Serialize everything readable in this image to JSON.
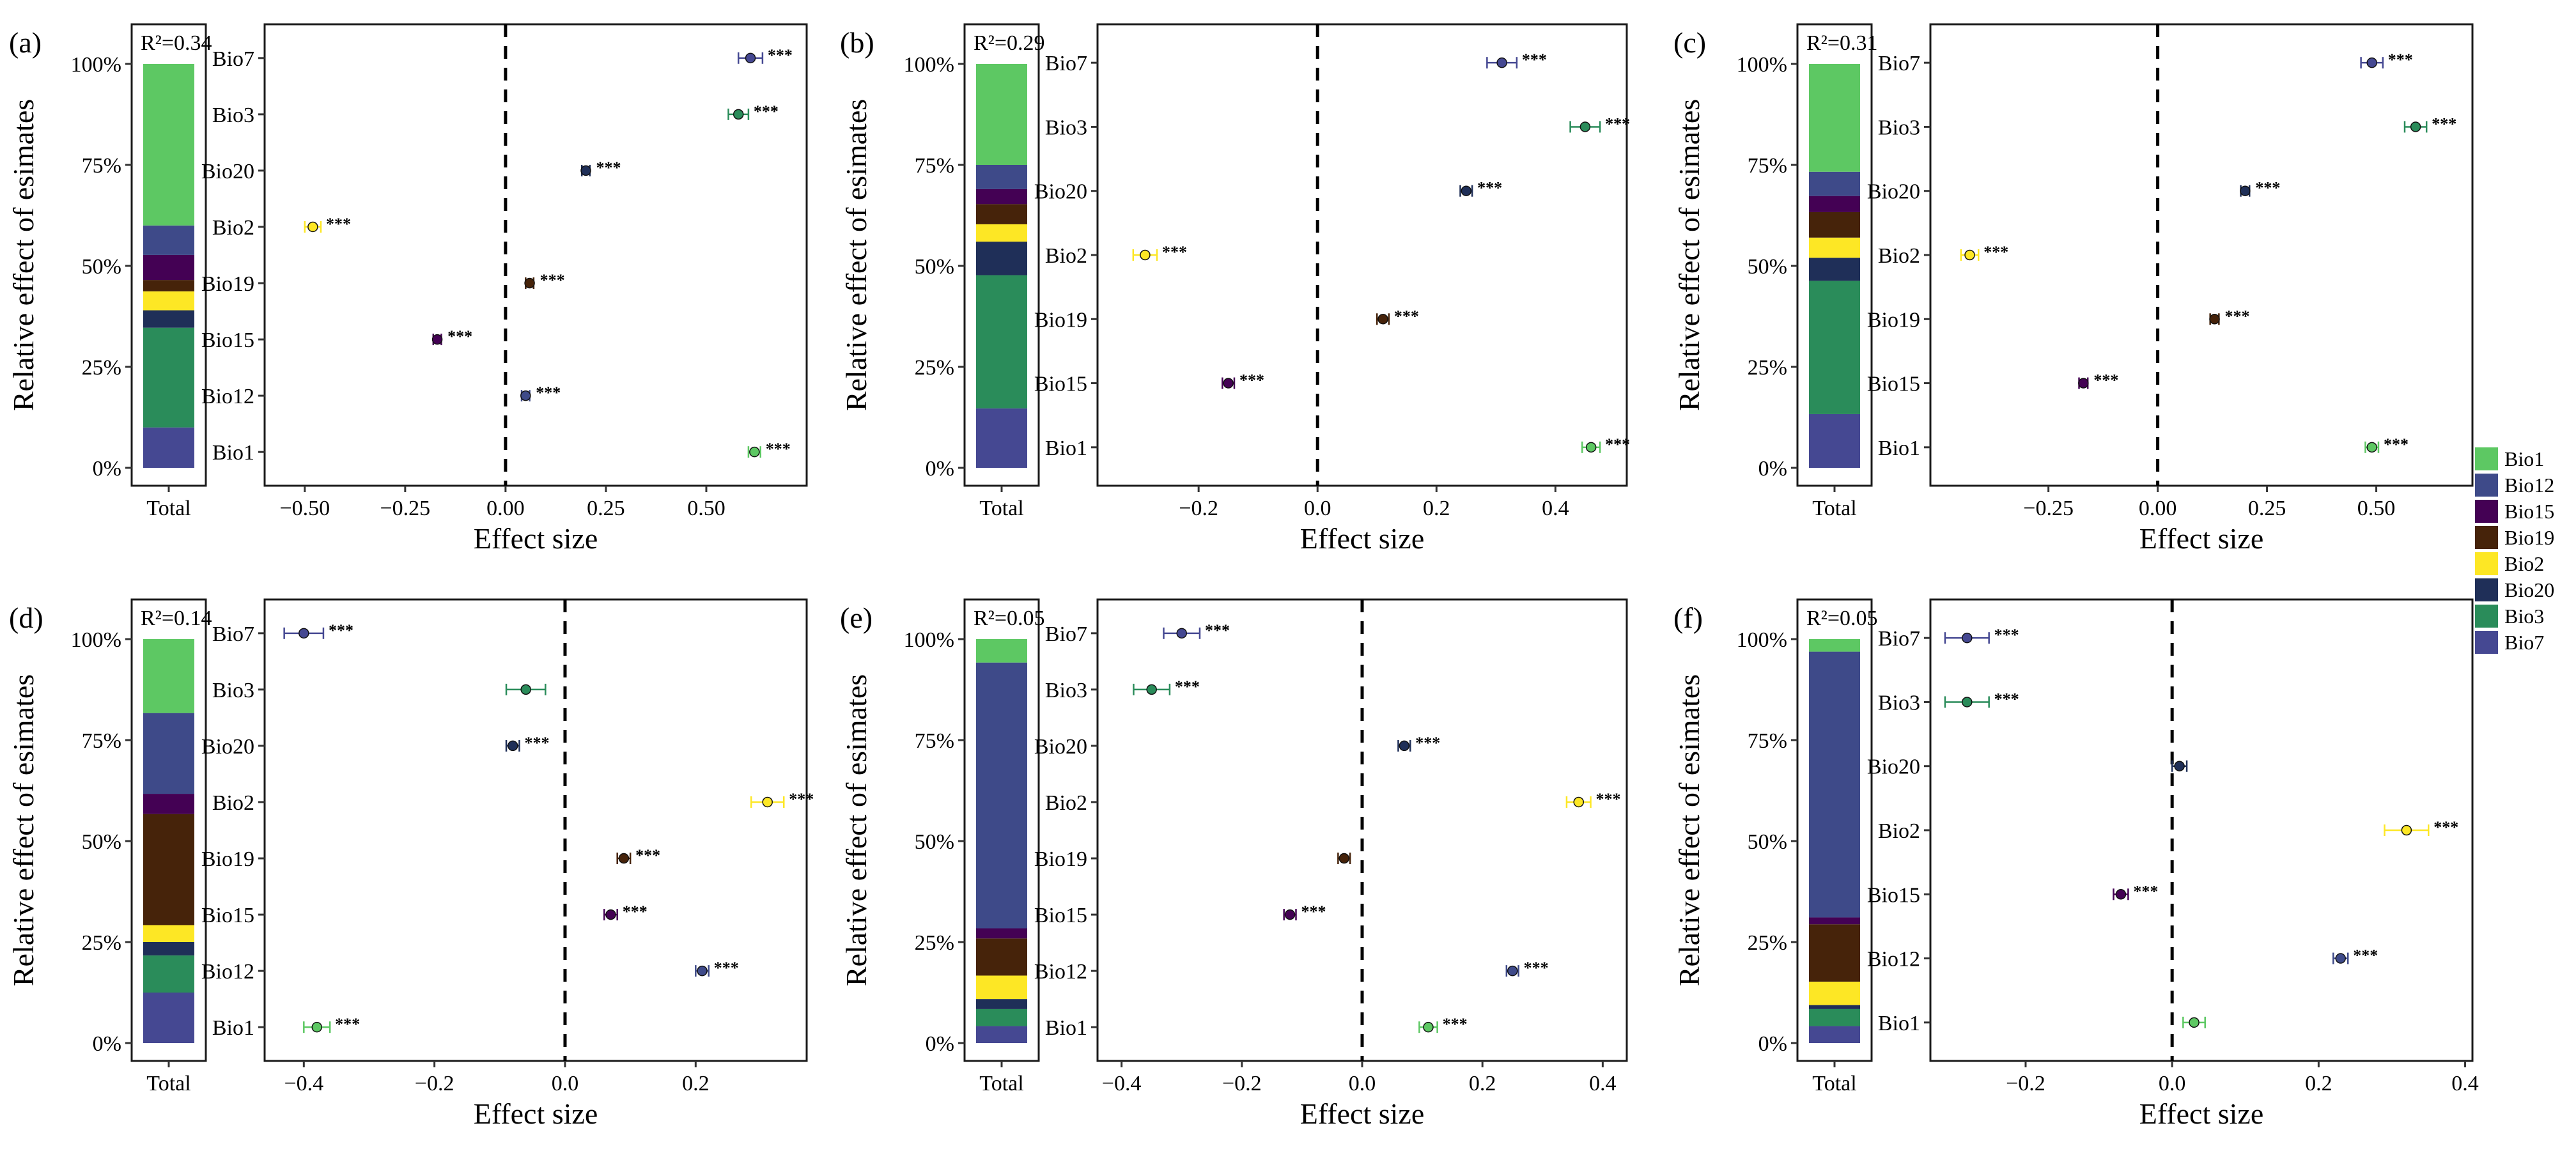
{
  "legend": {
    "title": "",
    "items": [
      {
        "name": "Bio1",
        "color": "#5dc863"
      },
      {
        "name": "Bio12",
        "color": "#3e4a89"
      },
      {
        "name": "Bio15",
        "color": "#440154"
      },
      {
        "name": "Bio19",
        "color": "#46230a"
      },
      {
        "name": "Bio2",
        "color": "#fde725"
      },
      {
        "name": "Bio20",
        "color": "#1f2f58"
      },
      {
        "name": "Bio3",
        "color": "#2a8c5a"
      },
      {
        "name": "Bio7",
        "color": "#454892"
      }
    ]
  },
  "chart_data": [
    {
      "panel": "(a)",
      "type": "scatter",
      "r2_label": "R²=0.34",
      "stack": {
        "xlabel": "Total",
        "ylabel": "Relative effect of esimates",
        "yticks": [
          "0%",
          "25%",
          "50%",
          "75%",
          "100%"
        ],
        "segments": [
          {
            "name": "Bio7",
            "value": 10.0
          },
          {
            "name": "Bio3",
            "value": 24.7
          },
          {
            "name": "Bio20",
            "value": 4.3
          },
          {
            "name": "Bio2",
            "value": 4.7
          },
          {
            "name": "Bio19",
            "value": 2.8
          },
          {
            "name": "Bio15",
            "value": 6.2
          },
          {
            "name": "Bio12",
            "value": 7.3
          },
          {
            "name": "Bio1",
            "value": 40.0
          }
        ]
      },
      "forest": {
        "xlabel": "Effect size",
        "xlim": [
          -0.6,
          0.75
        ],
        "xticks": [
          -0.5,
          -0.25,
          0.0,
          0.25,
          0.5
        ],
        "xtick_labels": [
          "−0.50",
          "−0.25",
          "0.00",
          "0.25",
          "0.50"
        ],
        "points": [
          {
            "name": "Bio7",
            "estimate": 0.61,
            "lower": 0.58,
            "upper": 0.64,
            "sig": "***"
          },
          {
            "name": "Bio3",
            "estimate": 0.58,
            "lower": 0.555,
            "upper": 0.605,
            "sig": "***"
          },
          {
            "name": "Bio20",
            "estimate": 0.2,
            "lower": 0.19,
            "upper": 0.21,
            "sig": "***"
          },
          {
            "name": "Bio2",
            "estimate": -0.48,
            "lower": -0.5,
            "upper": -0.46,
            "sig": "***"
          },
          {
            "name": "Bio19",
            "estimate": 0.06,
            "lower": 0.05,
            "upper": 0.07,
            "sig": "***"
          },
          {
            "name": "Bio15",
            "estimate": -0.17,
            "lower": -0.18,
            "upper": -0.16,
            "sig": "***"
          },
          {
            "name": "Bio12",
            "estimate": 0.05,
            "lower": 0.04,
            "upper": 0.06,
            "sig": "***"
          },
          {
            "name": "Bio1",
            "estimate": 0.62,
            "lower": 0.605,
            "upper": 0.635,
            "sig": "***"
          }
        ]
      }
    },
    {
      "panel": "(b)",
      "type": "scatter",
      "r2_label": "R²=0.29",
      "stack": {
        "xlabel": "Total",
        "ylabel": "Relative effect of esimates",
        "yticks": [
          "0%",
          "25%",
          "50%",
          "75%",
          "100%"
        ],
        "segments": [
          {
            "name": "Bio7",
            "value": 14.7
          },
          {
            "name": "Bio3",
            "value": 33.0
          },
          {
            "name": "Bio20",
            "value": 8.3
          },
          {
            "name": "Bio2",
            "value": 4.3
          },
          {
            "name": "Bio19",
            "value": 5.0
          },
          {
            "name": "Bio15",
            "value": 3.7
          },
          {
            "name": "Bio12",
            "value": 6.0
          },
          {
            "name": "Bio1",
            "value": 25.0
          }
        ]
      },
      "forest": {
        "xlabel": "Effect size",
        "xlim": [
          -0.37,
          0.52
        ],
        "xticks": [
          -0.2,
          0.0,
          0.2,
          0.4
        ],
        "xtick_labels": [
          "−0.2",
          "0.0",
          "0.2",
          "0.4"
        ],
        "points": [
          {
            "name": "Bio7",
            "estimate": 0.31,
            "lower": 0.285,
            "upper": 0.335,
            "sig": "***"
          },
          {
            "name": "Bio3",
            "estimate": 0.45,
            "lower": 0.425,
            "upper": 0.475,
            "sig": "***"
          },
          {
            "name": "Bio20",
            "estimate": 0.25,
            "lower": 0.24,
            "upper": 0.26,
            "sig": "***"
          },
          {
            "name": "Bio2",
            "estimate": -0.29,
            "lower": -0.31,
            "upper": -0.27,
            "sig": "***"
          },
          {
            "name": "Bio19",
            "estimate": 0.11,
            "lower": 0.1,
            "upper": 0.12,
            "sig": "***"
          },
          {
            "name": "Bio15",
            "estimate": -0.15,
            "lower": -0.16,
            "upper": -0.14,
            "sig": "***"
          },
          {
            "name": "Bio1",
            "estimate": 0.46,
            "lower": 0.445,
            "upper": 0.475,
            "sig": "***"
          }
        ]
      }
    },
    {
      "panel": "(c)",
      "type": "scatter",
      "r2_label": "R²=0.31",
      "stack": {
        "xlabel": "Total",
        "ylabel": "Relative effect of esimates",
        "yticks": [
          "0%",
          "25%",
          "50%",
          "75%",
          "100%"
        ],
        "segments": [
          {
            "name": "Bio7",
            "value": 13.3
          },
          {
            "name": "Bio3",
            "value": 33.0
          },
          {
            "name": "Bio20",
            "value": 5.7
          },
          {
            "name": "Bio2",
            "value": 5.0
          },
          {
            "name": "Bio19",
            "value": 6.3
          },
          {
            "name": "Bio15",
            "value": 4.0
          },
          {
            "name": "Bio12",
            "value": 6.0
          },
          {
            "name": "Bio1",
            "value": 26.7
          }
        ]
      },
      "forest": {
        "xlabel": "Effect size",
        "xlim": [
          -0.52,
          0.72
        ],
        "xticks": [
          -0.25,
          0.0,
          0.25,
          0.5
        ],
        "xtick_labels": [
          "−0.25",
          "0.00",
          "0.25",
          "0.50"
        ],
        "points": [
          {
            "name": "Bio7",
            "estimate": 0.49,
            "lower": 0.465,
            "upper": 0.515,
            "sig": "***"
          },
          {
            "name": "Bio3",
            "estimate": 0.59,
            "lower": 0.565,
            "upper": 0.615,
            "sig": "***"
          },
          {
            "name": "Bio20",
            "estimate": 0.2,
            "lower": 0.19,
            "upper": 0.21,
            "sig": "***"
          },
          {
            "name": "Bio2",
            "estimate": -0.43,
            "lower": -0.45,
            "upper": -0.41,
            "sig": "***"
          },
          {
            "name": "Bio19",
            "estimate": 0.13,
            "lower": 0.12,
            "upper": 0.14,
            "sig": "***"
          },
          {
            "name": "Bio15",
            "estimate": -0.17,
            "lower": -0.18,
            "upper": -0.16,
            "sig": "***"
          },
          {
            "name": "Bio1",
            "estimate": 0.49,
            "lower": 0.475,
            "upper": 0.505,
            "sig": "***"
          }
        ]
      }
    },
    {
      "panel": "(d)",
      "type": "scatter",
      "r2_label": "R²=0.14",
      "stack": {
        "xlabel": "Total",
        "ylabel": "Relative effect of esimates",
        "yticks": [
          "0%",
          "25%",
          "50%",
          "75%",
          "100%"
        ],
        "segments": [
          {
            "name": "Bio7",
            "value": 12.5
          },
          {
            "name": "Bio3",
            "value": 9.2
          },
          {
            "name": "Bio20",
            "value": 3.3
          },
          {
            "name": "Bio2",
            "value": 4.2
          },
          {
            "name": "Bio19",
            "value": 27.5
          },
          {
            "name": "Bio15",
            "value": 5.0
          },
          {
            "name": "Bio12",
            "value": 20.0
          },
          {
            "name": "Bio1",
            "value": 18.3
          }
        ]
      },
      "forest": {
        "xlabel": "Effect size",
        "xlim": [
          -0.46,
          0.37
        ],
        "xticks": [
          -0.4,
          -0.2,
          0.0,
          0.2
        ],
        "xtick_labels": [
          "−0.4",
          "−0.2",
          "0.0",
          "0.2"
        ],
        "points": [
          {
            "name": "Bio7",
            "estimate": -0.4,
            "lower": -0.43,
            "upper": -0.37,
            "sig": "***"
          },
          {
            "name": "Bio3",
            "estimate": -0.06,
            "lower": -0.09,
            "upper": -0.03,
            "sig": ""
          },
          {
            "name": "Bio20",
            "estimate": -0.08,
            "lower": -0.09,
            "upper": -0.07,
            "sig": "***"
          },
          {
            "name": "Bio2",
            "estimate": 0.31,
            "lower": 0.285,
            "upper": 0.335,
            "sig": "***"
          },
          {
            "name": "Bio19",
            "estimate": 0.09,
            "lower": 0.08,
            "upper": 0.1,
            "sig": "***"
          },
          {
            "name": "Bio15",
            "estimate": 0.07,
            "lower": 0.06,
            "upper": 0.08,
            "sig": "***"
          },
          {
            "name": "Bio12",
            "estimate": 0.21,
            "lower": 0.2,
            "upper": 0.22,
            "sig": "***"
          },
          {
            "name": "Bio1",
            "estimate": -0.38,
            "lower": -0.4,
            "upper": -0.36,
            "sig": "***"
          }
        ]
      }
    },
    {
      "panel": "(e)",
      "type": "scatter",
      "r2_label": "R²=0.05",
      "stack": {
        "xlabel": "Total",
        "ylabel": "Relative effect of esimates",
        "yticks": [
          "0%",
          "25%",
          "50%",
          "75%",
          "100%"
        ],
        "segments": [
          {
            "name": "Bio7",
            "value": 4.2
          },
          {
            "name": "Bio3",
            "value": 4.2
          },
          {
            "name": "Bio20",
            "value": 2.5
          },
          {
            "name": "Bio2",
            "value": 5.8
          },
          {
            "name": "Bio19",
            "value": 9.2
          },
          {
            "name": "Bio15",
            "value": 2.5
          },
          {
            "name": "Bio12",
            "value": 65.8
          },
          {
            "name": "Bio1",
            "value": 5.8
          }
        ]
      },
      "forest": {
        "xlabel": "Effect size",
        "xlim": [
          -0.44,
          0.44
        ],
        "xticks": [
          -0.4,
          -0.2,
          0.0,
          0.2,
          0.4
        ],
        "xtick_labels": [
          "−0.4",
          "−0.2",
          "0.0",
          "0.2",
          "0.4"
        ],
        "points": [
          {
            "name": "Bio7",
            "estimate": -0.3,
            "lower": -0.33,
            "upper": -0.27,
            "sig": "***"
          },
          {
            "name": "Bio3",
            "estimate": -0.35,
            "lower": -0.38,
            "upper": -0.32,
            "sig": "***"
          },
          {
            "name": "Bio20",
            "estimate": 0.07,
            "lower": 0.06,
            "upper": 0.08,
            "sig": "***"
          },
          {
            "name": "Bio2",
            "estimate": 0.36,
            "lower": 0.34,
            "upper": 0.38,
            "sig": "***"
          },
          {
            "name": "Bio19",
            "estimate": -0.03,
            "lower": -0.04,
            "upper": -0.02,
            "sig": ""
          },
          {
            "name": "Bio15",
            "estimate": -0.12,
            "lower": -0.13,
            "upper": -0.11,
            "sig": "***"
          },
          {
            "name": "Bio12",
            "estimate": 0.25,
            "lower": 0.24,
            "upper": 0.26,
            "sig": "***"
          },
          {
            "name": "Bio1",
            "estimate": 0.11,
            "lower": 0.095,
            "upper": 0.125,
            "sig": "***"
          }
        ]
      }
    },
    {
      "panel": "(f)",
      "type": "scatter",
      "r2_label": "R²=0.05",
      "stack": {
        "xlabel": "Total",
        "ylabel": "Relative effect of esimates",
        "yticks": [
          "0%",
          "25%",
          "50%",
          "75%",
          "100%"
        ],
        "segments": [
          {
            "name": "Bio7",
            "value": 4.2
          },
          {
            "name": "Bio3",
            "value": 4.2
          },
          {
            "name": "Bio20",
            "value": 1.0
          },
          {
            "name": "Bio2",
            "value": 5.8
          },
          {
            "name": "Bio19",
            "value": 14.2
          },
          {
            "name": "Bio15",
            "value": 1.7
          },
          {
            "name": "Bio12",
            "value": 65.8
          },
          {
            "name": "Bio1",
            "value": 3.1
          }
        ]
      },
      "forest": {
        "xlabel": "Effect size",
        "xlim": [
          -0.33,
          0.41
        ],
        "xticks": [
          -0.2,
          0.0,
          0.2,
          0.4
        ],
        "xtick_labels": [
          "−0.2",
          "0.0",
          "0.2",
          "0.4"
        ],
        "points": [
          {
            "name": "Bio7",
            "estimate": -0.28,
            "lower": -0.31,
            "upper": -0.25,
            "sig": "***"
          },
          {
            "name": "Bio3",
            "estimate": -0.28,
            "lower": -0.31,
            "upper": -0.25,
            "sig": "***"
          },
          {
            "name": "Bio20",
            "estimate": 0.01,
            "lower": 0.0,
            "upper": 0.02,
            "sig": ""
          },
          {
            "name": "Bio2",
            "estimate": 0.32,
            "lower": 0.29,
            "upper": 0.35,
            "sig": "***"
          },
          {
            "name": "Bio15",
            "estimate": -0.07,
            "lower": -0.08,
            "upper": -0.06,
            "sig": "***"
          },
          {
            "name": "Bio12",
            "estimate": 0.23,
            "lower": 0.22,
            "upper": 0.24,
            "sig": "***"
          },
          {
            "name": "Bio1",
            "estimate": 0.03,
            "lower": 0.015,
            "upper": 0.045,
            "sig": ""
          }
        ]
      }
    }
  ]
}
